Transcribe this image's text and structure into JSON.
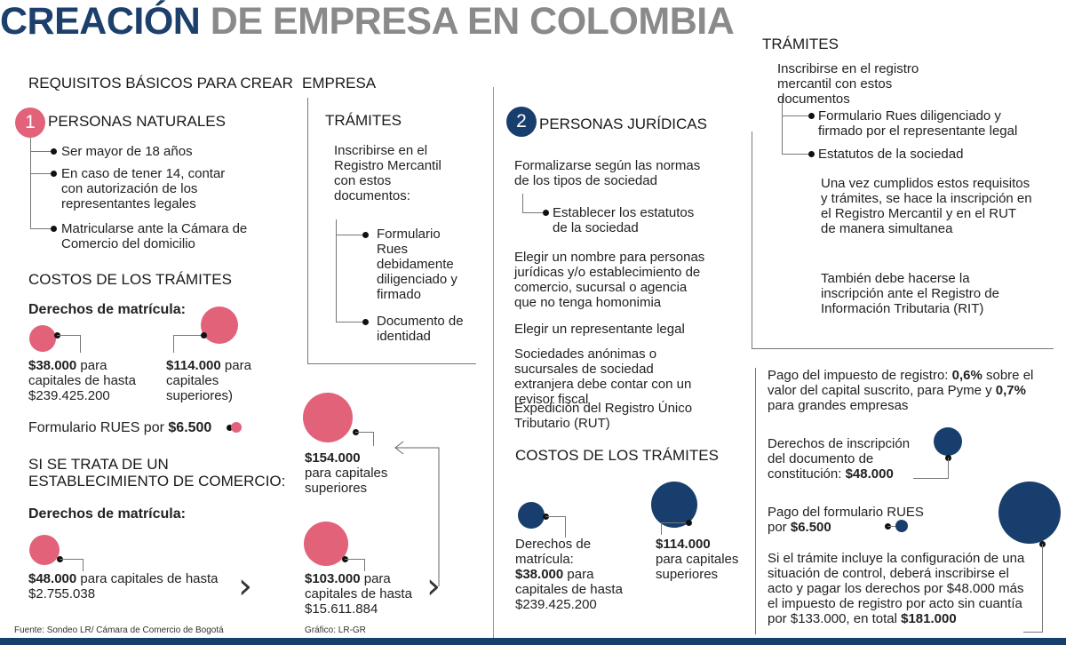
{
  "title": {
    "part1": "CREACIÓN",
    "part2": "DE EMPRESA EN COLOMBIA"
  },
  "requirements_heading": {
    "left": "REQUISITOS BÁSICOS PARA CREAR",
    "right": "EMPRESA"
  },
  "naturales": {
    "number": "1",
    "heading": "PERSONAS NATURALES",
    "items": [
      "Ser mayor de 18 años",
      "En caso de tener 14, contar con autorización de los representantes legales",
      "Matricularse ante la Cámara de Comercio del domicilio"
    ],
    "tramites": {
      "heading": "TRÁMITES",
      "intro": "Inscribirse en el Registro Mercantil con estos documentos:",
      "docs": [
        "Formulario Rues debidamente diligenciado y firmado",
        "Documento de identidad"
      ]
    },
    "costos": {
      "heading": "COSTOS DE LOS TRÁMITES",
      "sub": "Derechos de matrícula:",
      "cost1": {
        "amount": "$38.000",
        "text": "para capitales de hasta $239.425.200"
      },
      "cost2": {
        "amount": "$114.000",
        "text": "para capitales superiores)"
      },
      "formulario": {
        "text": "Formulario RUES por",
        "amount": "$6.500"
      }
    },
    "establecimiento": {
      "heading": "SI SE TRATA DE UN ESTABLECIMIENTO DE COMERCIO:",
      "sub": "Derechos de matrícula:",
      "cost1": {
        "amount": "$48.000",
        "text": "para capitales de hasta $2.755.038"
      },
      "cost2": {
        "amount": "$103.000",
        "text": "para capitales de hasta $15.611.884"
      },
      "cost3": {
        "amount": "$154.000",
        "text": "para capitales superiores"
      }
    }
  },
  "juridicas": {
    "number": "2",
    "heading": "PERSONAS JURÍDICAS",
    "items": [
      "Formalizarse según las normas de los tipos de sociedad",
      "Establecer los estatutos de la sociedad",
      "Elegir un nombre para personas jurídicas y/o establecimiento de comercio, sucursal o agencia que no tenga homonimia",
      "Elegir un representante legal",
      "Sociedades anónimas o sucursales de sociedad extranjera debe contar con un revisor fiscal",
      "Expedición del Registro Único Tributario (RUT)"
    ],
    "costos": {
      "heading": "COSTOS DE LOS TRÁMITES",
      "cost1": {
        "label": "Derechos de matrícula:",
        "amount": "$38.000",
        "text": "para capitales de hasta $239.425.200"
      },
      "cost2": {
        "amount": "$114.000",
        "text": "para capitales superiores"
      }
    },
    "tramites": {
      "heading": "TRÁMITES",
      "intro": "Inscribirse en el registro mercantil con estos documentos",
      "docs": [
        "Formulario Rues diligenciado y firmado por el representante legal",
        "Estatutos de la sociedad"
      ],
      "note1": "Una vez cumplidos estos requisitos y trámites, se hace la inscripción en el Registro Mercantil y en el RUT de manera simultanea",
      "note2": "También debe hacerse la inscripción ante el Registro de Información Tributaria (RIT)"
    },
    "impuesto": {
      "p1": "Pago del impuesto de registro:",
      "v1": "0,6%",
      "p2": "sobre el valor del capital suscrito, para Pyme y",
      "v2": "0,7%",
      "p3": "para grandes empresas"
    },
    "inscripcion": {
      "text": "Derechos de inscripción del documento de constitución:",
      "amount": "$48.000"
    },
    "formulario": {
      "text": "Pago del formulario RUES por",
      "amount": "$6.500"
    },
    "control": {
      "text": "Si el trámite incluye la configuración de una situación de control, deberá inscribirse el acto y pagar los derechos por $48.000 más el impuesto de registro por acto sin cuantía por $133.000, en total",
      "amount": "$181.000"
    }
  },
  "footer": {
    "source": "Fuente: Sondeo LR/ Cámara de Comercio de Bogotá",
    "graphic": "Gráfico: LR-GR"
  },
  "colors": {
    "pink": "#e2627a",
    "navy": "#173e6c",
    "gray_title": "#8a8a8a"
  }
}
